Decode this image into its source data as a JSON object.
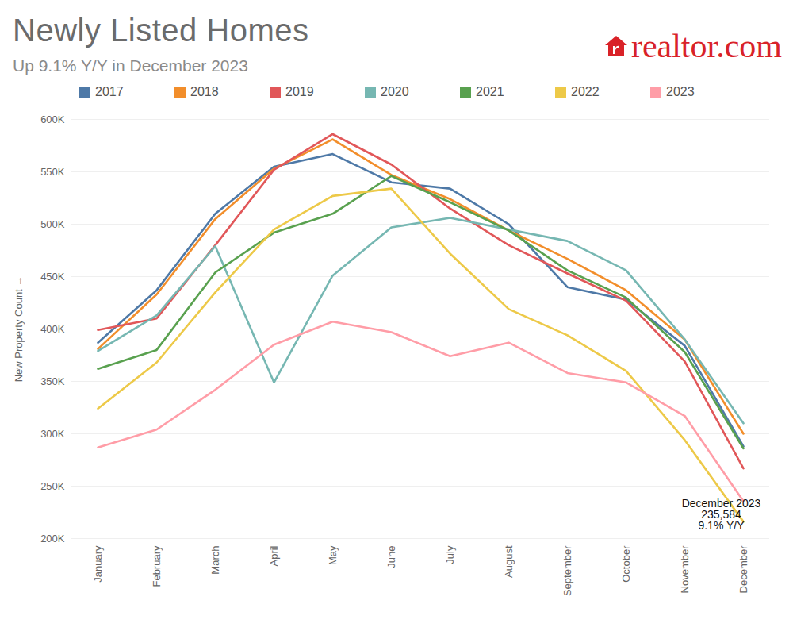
{
  "chart_data": {
    "type": "line",
    "title": "Newly Listed Homes",
    "subtitle": "Up 9.1% Y/Y in December 2023",
    "source_logo": "realtor.com",
    "y_label": "New Property Count",
    "categories": [
      "January",
      "February",
      "March",
      "April",
      "May",
      "June",
      "July",
      "August",
      "September",
      "October",
      "November",
      "December"
    ],
    "series": [
      {
        "name": "2017",
        "color": "#4e79a7",
        "values": [
          387000,
          437000,
          510000,
          555000,
          567000,
          540000,
          534000,
          500000,
          440000,
          428000,
          384000,
          288000
        ]
      },
      {
        "name": "2018",
        "color": "#f28e2b",
        "values": [
          381000,
          433000,
          505000,
          553000,
          581000,
          547000,
          524000,
          494000,
          467000,
          437000,
          390000,
          300000
        ]
      },
      {
        "name": "2019",
        "color": "#e15759",
        "values": [
          399000,
          410000,
          480000,
          552000,
          586000,
          557000,
          515000,
          480000,
          453000,
          427000,
          369000,
          267000
        ]
      },
      {
        "name": "2020",
        "color": "#76b7b2",
        "values": [
          379000,
          413000,
          479000,
          349000,
          451000,
          497000,
          506000,
          495000,
          484000,
          456000,
          390000,
          310000
        ]
      },
      {
        "name": "2021",
        "color": "#59a14f",
        "values": [
          362000,
          380000,
          454000,
          492000,
          510000,
          546000,
          521000,
          494000,
          456000,
          430000,
          378000,
          286000
        ]
      },
      {
        "name": "2022",
        "color": "#edc948",
        "values": [
          324000,
          368000,
          435000,
          495000,
          527000,
          534000,
          472000,
          419000,
          394000,
          360000,
          294000,
          216000
        ]
      },
      {
        "name": "2023",
        "color": "#ff9da7",
        "values": [
          287000,
          304000,
          342000,
          385000,
          407000,
          397000,
          374000,
          387000,
          358000,
          349000,
          317000,
          235584
        ]
      }
    ],
    "ylim": [
      200000,
      600000
    ],
    "yticks": [
      {
        "value": 200000,
        "label": "200K"
      },
      {
        "value": 250000,
        "label": "250K"
      },
      {
        "value": 300000,
        "label": "300K"
      },
      {
        "value": 350000,
        "label": "350K"
      },
      {
        "value": 400000,
        "label": "400K"
      },
      {
        "value": 450000,
        "label": "450K"
      },
      {
        "value": 500000,
        "label": "500K"
      },
      {
        "value": 550000,
        "label": "550K"
      },
      {
        "value": 600000,
        "label": "600K"
      }
    ],
    "grid": true,
    "legend": "top",
    "annotations": [
      {
        "x": "December",
        "y": 235584,
        "text": [
          "December 2023",
          "235,584",
          "9.1% Y/Y"
        ]
      }
    ]
  }
}
